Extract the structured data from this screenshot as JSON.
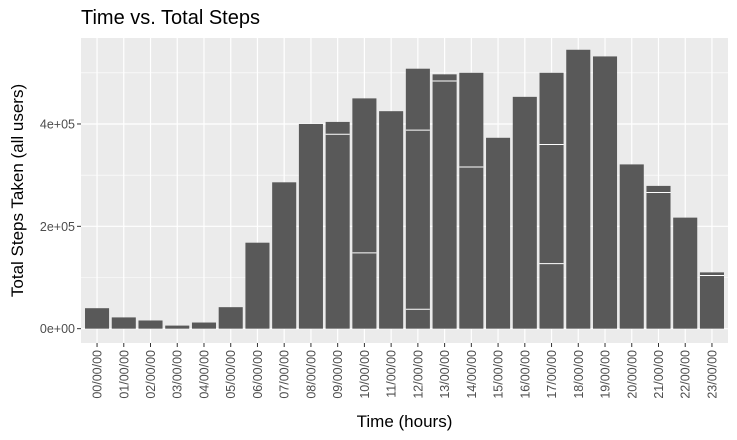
{
  "chart_data": {
    "type": "bar",
    "title": "Time vs. Total Steps",
    "xlabel": "Time (hours)",
    "ylabel": "Total Steps Taken (all users)",
    "categories": [
      "00/00/00",
      "01/00/00",
      "02/00/00",
      "03/00/00",
      "04/00/00",
      "05/00/00",
      "06/00/00",
      "07/00/00",
      "08/00/00",
      "09/00/00",
      "10/00/00",
      "11/00/00",
      "12/00/00",
      "13/00/00",
      "14/00/00",
      "15/00/00",
      "16/00/00",
      "17/00/00",
      "18/00/00",
      "19/00/00",
      "20/00/00",
      "21/00/00",
      "22/00/00",
      "23/00/00"
    ],
    "values": [
      40000,
      22000,
      16000,
      6000,
      12000,
      42000,
      168000,
      286000,
      400000,
      404000,
      450000,
      425000,
      508000,
      497000,
      500000,
      373000,
      453000,
      500000,
      545000,
      532000,
      321000,
      279000,
      217000,
      110000
    ],
    "segment_breaks": [
      [],
      [],
      [],
      [],
      [],
      [],
      [],
      [],
      [],
      [
        380000
      ],
      [
        148000
      ],
      [],
      [
        38000,
        388000
      ],
      [
        484000
      ],
      [
        316000
      ],
      [],
      [],
      [
        127000,
        360000
      ],
      [],
      [],
      [],
      [
        266000
      ],
      [],
      [
        104000
      ]
    ],
    "ylim": [
      -28000,
      568000
    ],
    "yticks": [
      0,
      200000,
      400000
    ],
    "ytick_labels": [
      "0e+00",
      "2e+05",
      "4e+05"
    ],
    "bar_color": "#595959",
    "panel_color": "#ebebeb",
    "grid": true,
    "legend": "none"
  }
}
